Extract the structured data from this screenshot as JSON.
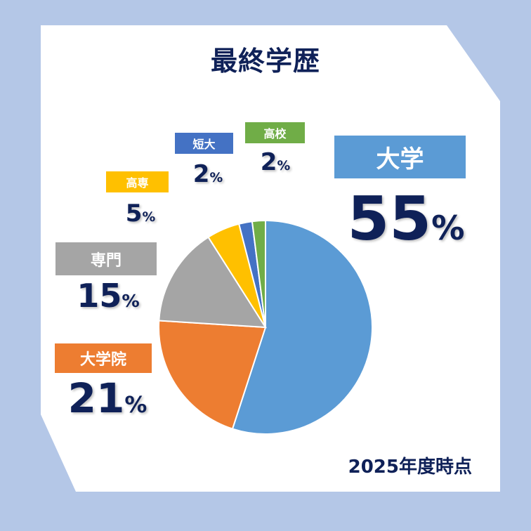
{
  "title": "最終学歴",
  "footer": "2025年度時点",
  "unit": "%",
  "chart_data": {
    "type": "pie",
    "title": "最終学歴",
    "categories": [
      "大学",
      "大学院",
      "専門",
      "高専",
      "短大",
      "高校"
    ],
    "values": [
      55,
      21,
      15,
      5,
      2,
      2
    ],
    "colors": [
      "#5b9bd5",
      "#ed7d31",
      "#a5a5a5",
      "#ffc000",
      "#4472c4",
      "#70ad47"
    ],
    "value_labels": [
      "55",
      "21",
      "15",
      "5",
      "2",
      "2"
    ]
  }
}
